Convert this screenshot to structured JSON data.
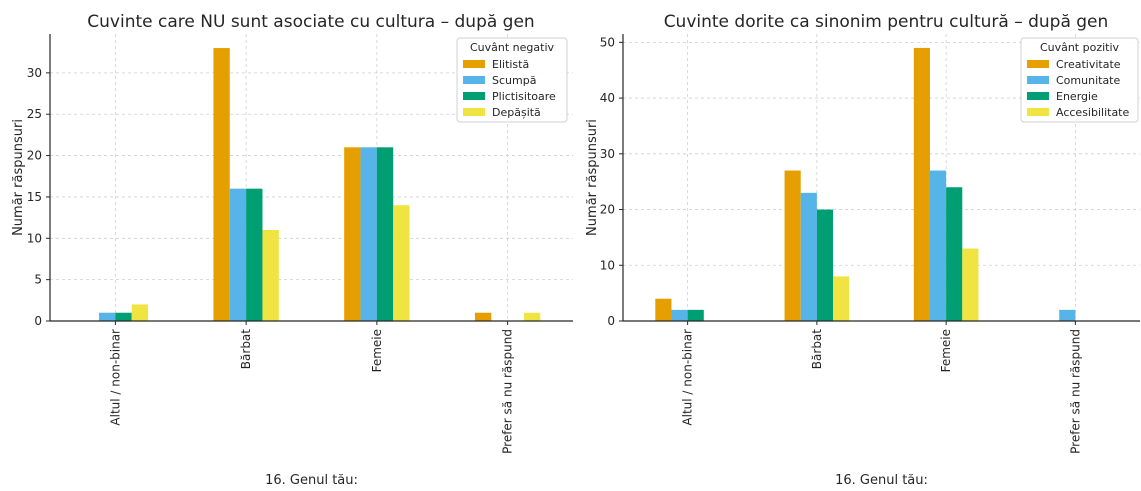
{
  "chart_data": [
    {
      "type": "bar",
      "title": "Cuvinte care NU sunt asociate cu cultura – după gen",
      "xlabel": "16. Genul tău:",
      "ylabel": "Număr răspunsuri",
      "categories": [
        "Altul / non-binar",
        "Bărbat",
        "Femeie",
        "Prefer să nu răspund"
      ],
      "legend_title": "Cuvânt negativ",
      "legend_position": "top-right",
      "grid": true,
      "ylim": [
        0,
        34.7
      ],
      "yticks": [
        0,
        5,
        10,
        15,
        20,
        25,
        30
      ],
      "series": [
        {
          "name": "Elitistă",
          "color": "#E69F00",
          "values": [
            0,
            33,
            21,
            1
          ]
        },
        {
          "name": "Scumpă",
          "color": "#56B4E9",
          "values": [
            1,
            16,
            21,
            0
          ]
        },
        {
          "name": "Plictisitoare",
          "color": "#009E73",
          "values": [
            1,
            16,
            21,
            0
          ]
        },
        {
          "name": "Depășită",
          "color": "#F0E442",
          "values": [
            2,
            11,
            14,
            1
          ]
        }
      ]
    },
    {
      "type": "bar",
      "title": "Cuvinte dorite ca sinonim pentru cultură – după gen",
      "xlabel": "16. Genul tău:",
      "ylabel": "Număr răspunsuri",
      "categories": [
        "Altul / non-binar",
        "Bărbat",
        "Femeie",
        "Prefer să nu răspund"
      ],
      "legend_title": "Cuvânt pozitiv",
      "legend_position": "top-right",
      "grid": true,
      "ylim": [
        0,
        51.5
      ],
      "yticks": [
        0,
        10,
        20,
        30,
        40,
        50
      ],
      "series": [
        {
          "name": "Creativitate",
          "color": "#E69F00",
          "values": [
            4,
            27,
            49,
            0
          ]
        },
        {
          "name": "Comunitate",
          "color": "#56B4E9",
          "values": [
            2,
            23,
            27,
            2
          ]
        },
        {
          "name": "Energie",
          "color": "#009E73",
          "values": [
            2,
            20,
            24,
            0
          ]
        },
        {
          "name": "Accesibilitate",
          "color": "#F0E442",
          "values": [
            0,
            8,
            13,
            0
          ]
        }
      ]
    }
  ]
}
